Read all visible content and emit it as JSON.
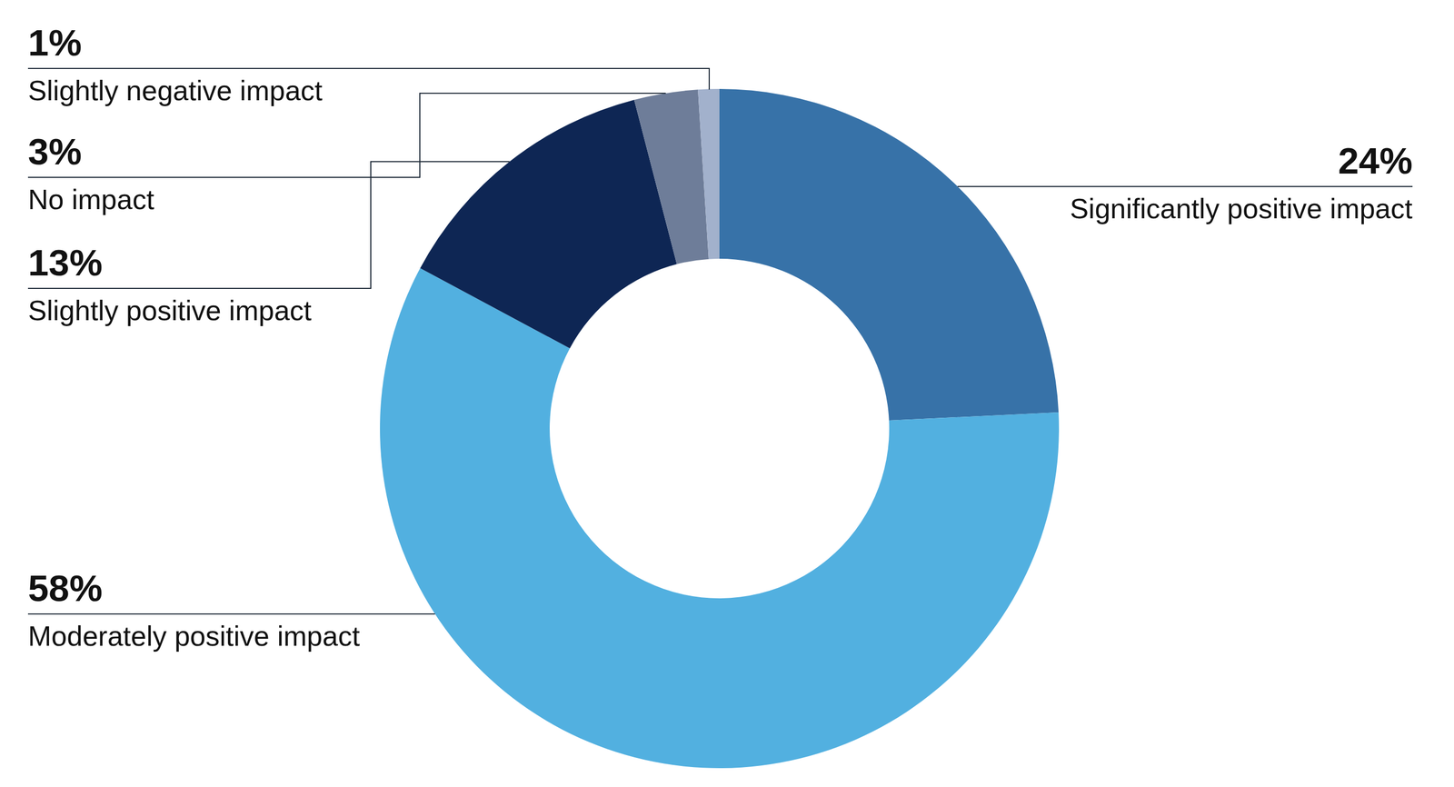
{
  "chart_data": {
    "type": "donut",
    "categories": [
      "Significantly positive impact",
      "Moderately positive impact",
      "Slightly positive impact",
      "No impact",
      "Slightly negative impact"
    ],
    "values": [
      24,
      58,
      13,
      3,
      1
    ],
    "value_labels": [
      "24%",
      "58%",
      "13%",
      "3%",
      "1%"
    ],
    "colors": [
      "#3772a8",
      "#52b0e0",
      "#0e2654",
      "#6e7d99",
      "#a2b1cc"
    ],
    "data_labels": true
  }
}
